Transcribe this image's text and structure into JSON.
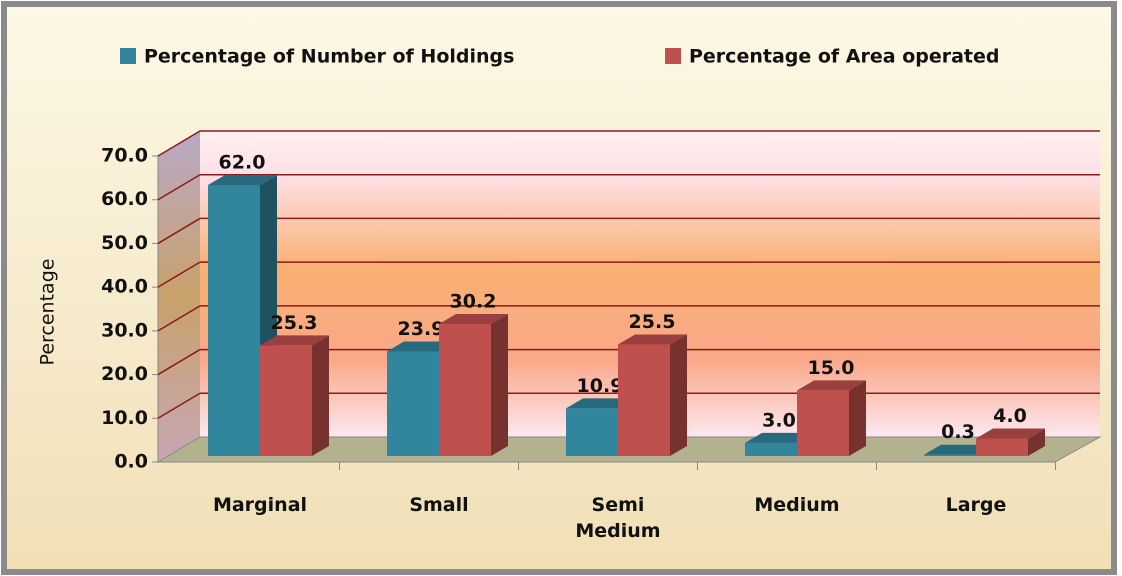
{
  "chart_data": {
    "type": "bar3d",
    "y_axis_label": "Percentage",
    "categories": [
      "Marginal",
      "Small",
      "Semi Medium",
      "Medium",
      "Large"
    ],
    "series": [
      {
        "name": "Percentage of Number of Holdings",
        "color": "#31859c",
        "values": [
          62.0,
          23.9,
          10.9,
          3.0,
          0.3
        ],
        "value_labels": [
          "62.0",
          "23.9",
          "10.9",
          "3.0",
          "0.3"
        ]
      },
      {
        "name": "Percentage of Area operated",
        "color": "#c0504d",
        "values": [
          25.3,
          30.2,
          25.5,
          15.0,
          4.0
        ],
        "value_labels": [
          "25.3",
          "30.2",
          "25.5",
          "15.0",
          "4.0"
        ]
      }
    ],
    "ylim": [
      0,
      70
    ],
    "yticks": [
      {
        "value": 0,
        "label": "0.0"
      },
      {
        "value": 10,
        "label": "10.0"
      },
      {
        "value": 20,
        "label": "20.0"
      },
      {
        "value": 30,
        "label": "30.0"
      },
      {
        "value": 40,
        "label": "40.0"
      },
      {
        "value": 50,
        "label": "50.0"
      },
      {
        "value": 60,
        "label": "60.0"
      },
      {
        "value": 70,
        "label": "70.0"
      }
    ],
    "grid": true,
    "legend": "top"
  }
}
